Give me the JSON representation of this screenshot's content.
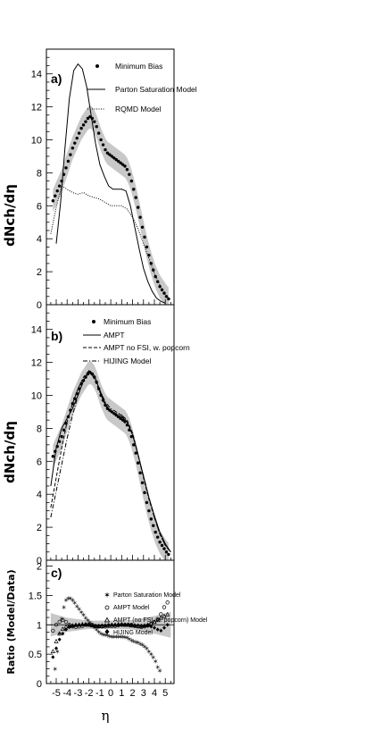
{
  "chart_data": [
    {
      "panel": "a)",
      "type": "line",
      "ylabel": "dNch/dη",
      "xlim": [
        -5.9,
        5.8
      ],
      "ylim": [
        0,
        15.5
      ],
      "yticks": [
        0,
        2,
        4,
        6,
        8,
        10,
        12,
        14
      ],
      "legend": [
        "Minimum Bias",
        "Parton Saturation Model",
        "RQMD Model"
      ],
      "data_band_halfwidth": 0.7,
      "series": [
        {
          "name": "Minimum Bias",
          "style": "points",
          "x": [
            -5.3,
            -5.1,
            -4.9,
            -4.7,
            -4.5,
            -4.3,
            -4.1,
            -3.9,
            -3.7,
            -3.5,
            -3.3,
            -3.1,
            -2.9,
            -2.7,
            -2.5,
            -2.3,
            -2.1,
            -1.9,
            -1.7,
            -1.5,
            -1.3,
            -1.1,
            -0.9,
            -0.7,
            -0.5,
            -0.3,
            -0.1,
            0.1,
            0.3,
            0.5,
            0.7,
            0.9,
            1.1,
            1.3,
            1.5,
            1.7,
            1.9,
            2.1,
            2.3,
            2.5,
            2.7,
            2.9,
            3.1,
            3.3,
            3.5,
            3.7,
            3.9,
            4.1,
            4.3,
            4.5,
            4.7,
            4.9,
            5.1,
            5.3
          ],
          "y": [
            6.3,
            6.6,
            6.9,
            7.2,
            7.5,
            7.9,
            8.3,
            8.7,
            9.1,
            9.5,
            9.8,
            10.1,
            10.4,
            10.7,
            10.9,
            11.1,
            11.3,
            11.4,
            11.3,
            11.1,
            10.8,
            10.4,
            10.0,
            9.7,
            9.4,
            9.2,
            9.1,
            9.0,
            8.9,
            8.8,
            8.7,
            8.6,
            8.5,
            8.4,
            8.2,
            7.9,
            7.5,
            7.0,
            6.5,
            5.9,
            5.3,
            4.7,
            4.1,
            3.5,
            3.0,
            2.5,
            2.1,
            1.7,
            1.4,
            1.1,
            0.9,
            0.7,
            0.5,
            0.35
          ]
        },
        {
          "name": "Parton Saturation Model",
          "style": "solid",
          "x": [
            -5.0,
            -4.6,
            -4.2,
            -3.8,
            -3.4,
            -3.0,
            -2.6,
            -2.2,
            -1.8,
            -1.4,
            -1.0,
            -0.6,
            -0.2,
            0.2,
            0.6,
            1.0,
            1.4,
            1.8,
            2.2,
            2.6,
            3.0,
            3.4,
            3.8,
            4.2,
            4.6,
            5.0
          ],
          "y": [
            3.7,
            6.2,
            9.5,
            12.5,
            14.2,
            14.6,
            14.3,
            13.2,
            11.5,
            9.8,
            8.5,
            7.8,
            7.2,
            7.0,
            7.0,
            7.0,
            6.9,
            6.0,
            4.7,
            3.4,
            2.2,
            1.4,
            0.8,
            0.4,
            0.2,
            0.1
          ]
        },
        {
          "name": "RQMD Model",
          "style": "dotted",
          "x": [
            -5.5,
            -5.0,
            -4.5,
            -4.0,
            -3.5,
            -3.0,
            -2.5,
            -2.0,
            -1.5,
            -1.0,
            -0.5,
            0.0,
            0.5,
            1.0,
            1.5,
            2.0,
            2.5,
            3.0,
            3.5,
            4.0,
            4.5,
            5.0,
            5.5
          ],
          "y": [
            4.3,
            5.9,
            7.2,
            7.0,
            6.8,
            6.7,
            6.8,
            6.6,
            6.5,
            6.4,
            6.2,
            6.0,
            6.0,
            6.0,
            5.8,
            5.3,
            4.6,
            3.7,
            2.8,
            1.9,
            1.2,
            0.6,
            0.3
          ]
        }
      ]
    },
    {
      "panel": "b)",
      "type": "line",
      "ylabel": "dNch/dη",
      "xlim": [
        -5.9,
        5.8
      ],
      "ylim": [
        0,
        15.5
      ],
      "yticks": [
        0,
        2,
        4,
        6,
        8,
        10,
        12,
        14
      ],
      "legend": [
        "Minimum Bias",
        "AMPT",
        "AMPT no FSI, w. popcorn",
        "HIJING Model"
      ],
      "data_band_halfwidth": 0.7,
      "series": [
        {
          "name": "Minimum Bias",
          "style": "points",
          "x": [
            -5.3,
            -5.1,
            -4.9,
            -4.7,
            -4.5,
            -4.3,
            -4.1,
            -3.9,
            -3.7,
            -3.5,
            -3.3,
            -3.1,
            -2.9,
            -2.7,
            -2.5,
            -2.3,
            -2.1,
            -1.9,
            -1.7,
            -1.5,
            -1.3,
            -1.1,
            -0.9,
            -0.7,
            -0.5,
            -0.3,
            -0.1,
            0.1,
            0.3,
            0.5,
            0.7,
            0.9,
            1.1,
            1.3,
            1.5,
            1.7,
            1.9,
            2.1,
            2.3,
            2.5,
            2.7,
            2.9,
            3.1,
            3.3,
            3.5,
            3.7,
            3.9,
            4.1,
            4.3,
            4.5,
            4.7,
            4.9,
            5.1,
            5.3
          ],
          "y": [
            6.3,
            6.6,
            6.9,
            7.2,
            7.5,
            7.9,
            8.3,
            8.7,
            9.1,
            9.5,
            9.8,
            10.1,
            10.4,
            10.7,
            10.9,
            11.1,
            11.3,
            11.4,
            11.3,
            11.1,
            10.8,
            10.4,
            10.0,
            9.7,
            9.4,
            9.2,
            9.1,
            9.0,
            8.9,
            8.8,
            8.7,
            8.6,
            8.5,
            8.4,
            8.2,
            7.9,
            7.5,
            7.0,
            6.5,
            5.9,
            5.3,
            4.7,
            4.1,
            3.5,
            3.0,
            2.5,
            2.1,
            1.7,
            1.4,
            1.1,
            0.9,
            0.7,
            0.5,
            0.35
          ]
        },
        {
          "name": "AMPT",
          "style": "solid",
          "x": [
            -5.5,
            -5.0,
            -4.5,
            -4.0,
            -3.5,
            -3.0,
            -2.5,
            -2.0,
            -1.5,
            -1.0,
            -0.5,
            0.0,
            0.5,
            1.0,
            1.5,
            2.0,
            2.5,
            3.0,
            3.5,
            4.0,
            4.5,
            5.0,
            5.5
          ],
          "y": [
            4.5,
            6.8,
            8.0,
            8.6,
            9.2,
            10.0,
            10.9,
            11.5,
            11.2,
            10.3,
            9.5,
            9.0,
            8.8,
            8.7,
            8.4,
            7.6,
            6.4,
            5.1,
            3.8,
            2.7,
            1.7,
            1.0,
            0.5
          ]
        },
        {
          "name": "AMPT no FSI, w. popcorn",
          "style": "dashed",
          "x": [
            -5.5,
            -5.0,
            -4.5,
            -4.0,
            -3.5,
            -3.0,
            -2.5,
            -2.0,
            -1.5,
            -1.0,
            -0.5,
            0.0,
            0.5,
            1.0,
            1.5,
            2.0,
            2.5,
            3.0,
            3.5,
            4.0,
            4.5,
            5.0,
            5.5
          ],
          "y": [
            3.2,
            5.0,
            6.8,
            8.4,
            9.5,
            10.4,
            11.1,
            11.5,
            11.0,
            10.2,
            9.4,
            9.0,
            8.9,
            8.8,
            8.5,
            7.7,
            6.4,
            5.0,
            3.7,
            2.6,
            1.6,
            0.9,
            0.5
          ]
        },
        {
          "name": "HIJING Model",
          "style": "dashdot",
          "x": [
            -5.5,
            -5.0,
            -4.5,
            -4.0,
            -3.5,
            -3.0,
            -2.5,
            -2.0,
            -1.5,
            -1.0,
            -0.5,
            0.0,
            0.5,
            1.0,
            1.5,
            2.0,
            2.5,
            3.0,
            3.5,
            4.0,
            4.5,
            5.0,
            5.5
          ],
          "y": [
            2.6,
            4.2,
            5.8,
            7.4,
            8.8,
            10.0,
            10.9,
            11.4,
            11.1,
            10.3,
            9.6,
            9.2,
            9.0,
            8.8,
            8.4,
            7.6,
            6.4,
            5.1,
            3.8,
            2.6,
            1.6,
            0.9,
            0.5
          ]
        }
      ]
    },
    {
      "panel": "c)",
      "type": "scatter",
      "ylabel": "Ratio (Model/Data)",
      "xlabel": "η",
      "xlim": [
        -5.9,
        5.8
      ],
      "ylim": [
        0,
        2.1
      ],
      "yticks": [
        0,
        0.5,
        1,
        1.5,
        2
      ],
      "ytick_labels": [
        "0",
        "0.5",
        "1",
        "1.5",
        "2"
      ],
      "xticks": [
        -5,
        -4,
        -3,
        -2,
        -1,
        0,
        1,
        2,
        3,
        4,
        5
      ],
      "legend": [
        "Parton Saturation Model",
        "AMPT Model",
        "AMPT (no FSI, w. popcorn) Model",
        "HIJING Model"
      ],
      "systematic_band": {
        "x": [
          -5.5,
          -4,
          -2,
          0,
          2,
          4,
          5.5
        ],
        "lower": [
          0.8,
          0.88,
          0.93,
          0.93,
          0.92,
          0.85,
          0.78
        ],
        "upper": [
          1.2,
          1.12,
          1.07,
          1.07,
          1.08,
          1.15,
          1.22
        ]
      },
      "series": [
        {
          "name": "Parton Saturation Model",
          "marker": "star",
          "x": [
            -5.1,
            -4.9,
            -4.7,
            -4.5,
            -4.3,
            -4.1,
            -3.9,
            -3.7,
            -3.5,
            -3.3,
            -3.1,
            -2.9,
            -2.7,
            -2.5,
            -2.3,
            -2.1,
            -1.9,
            -1.7,
            -1.5,
            -1.3,
            -1.1,
            -0.9,
            -0.7,
            -0.5,
            -0.3,
            -0.1,
            0.1,
            0.3,
            0.5,
            0.7,
            0.9,
            1.1,
            1.3,
            1.5,
            1.7,
            1.9,
            2.1,
            2.3,
            2.5,
            2.7,
            2.9,
            3.1,
            3.3,
            3.5,
            3.7,
            3.9,
            4.1,
            4.3,
            4.5
          ],
          "y": [
            0.25,
            0.55,
            0.85,
            1.1,
            1.3,
            1.42,
            1.45,
            1.45,
            1.42,
            1.38,
            1.32,
            1.27,
            1.22,
            1.17,
            1.12,
            1.08,
            1.04,
            1.0,
            0.96,
            0.92,
            0.88,
            0.85,
            0.84,
            0.83,
            0.82,
            0.81,
            0.8,
            0.8,
            0.8,
            0.8,
            0.8,
            0.8,
            0.79,
            0.78,
            0.76,
            0.74,
            0.72,
            0.71,
            0.7,
            0.68,
            0.66,
            0.63,
            0.6,
            0.55,
            0.5,
            0.45,
            0.38,
            0.28,
            0.22
          ]
        },
        {
          "name": "AMPT Model",
          "marker": "circle",
          "x": [
            -5.3,
            -5.0,
            -4.7,
            -4.4,
            -4.1,
            -3.8,
            -3.5,
            -3.2,
            -2.9,
            -2.6,
            -2.3,
            -2.0,
            -1.7,
            -1.4,
            -1.1,
            -0.8,
            -0.5,
            -0.2,
            0.1,
            0.4,
            0.7,
            1.0,
            1.3,
            1.6,
            1.9,
            2.2,
            2.5,
            2.8,
            3.1,
            3.4,
            3.7,
            4.0,
            4.3,
            4.6,
            4.9,
            5.2
          ],
          "y": [
            0.9,
            1.0,
            1.05,
            1.08,
            1.05,
            1.0,
            0.97,
            0.96,
            0.97,
            0.98,
            1.0,
            1.01,
            1.0,
            0.98,
            0.97,
            0.97,
            0.97,
            0.98,
            0.98,
            0.98,
            0.99,
            1.0,
            1.0,
            1.0,
            1.0,
            0.98,
            0.97,
            0.96,
            0.97,
            0.99,
            1.02,
            1.05,
            1.1,
            1.18,
            1.3,
            1.38
          ]
        },
        {
          "name": "AMPT (no FSI, w. popcorn) Model",
          "marker": "triangle",
          "x": [
            -5.3,
            -5.0,
            -4.7,
            -4.4,
            -4.1,
            -3.8,
            -3.5,
            -3.2,
            -2.9,
            -2.6,
            -2.3,
            -2.0,
            -1.7,
            -1.4,
            -1.1,
            -0.8,
            -0.5,
            -0.2,
            0.1,
            0.4,
            0.7,
            1.0,
            1.3,
            1.6,
            1.9,
            2.2,
            2.5,
            2.8,
            3.1,
            3.4,
            3.7,
            4.0,
            4.3,
            4.6,
            4.9,
            5.2
          ],
          "y": [
            0.55,
            0.72,
            0.85,
            0.93,
            0.97,
            0.98,
            0.99,
            1.0,
            1.0,
            1.01,
            1.01,
            1.0,
            0.99,
            0.98,
            0.98,
            0.98,
            0.99,
            0.99,
            1.0,
            1.0,
            1.01,
            1.01,
            1.0,
            1.0,
            0.99,
            0.99,
            0.98,
            0.98,
            0.99,
            1.0,
            1.02,
            1.05,
            1.08,
            1.12,
            1.15,
            1.18
          ]
        },
        {
          "name": "HIJING Model",
          "marker": "diamond",
          "x": [
            -5.3,
            -5.0,
            -4.7,
            -4.4,
            -4.1,
            -3.8,
            -3.5,
            -3.2,
            -2.9,
            -2.6,
            -2.3,
            -2.0,
            -1.7,
            -1.4,
            -1.1,
            -0.8,
            -0.5,
            -0.2,
            0.1,
            0.4,
            0.7,
            1.0,
            1.3,
            1.6,
            1.9,
            2.2,
            2.5,
            2.8,
            3.1,
            3.4,
            3.7,
            4.0,
            4.3,
            4.6,
            4.9,
            5.2
          ],
          "y": [
            0.45,
            0.6,
            0.75,
            0.85,
            0.92,
            0.96,
            0.98,
            0.99,
            1.0,
            1.0,
            1.0,
            1.0,
            0.99,
            0.98,
            0.98,
            0.99,
            0.99,
            1.0,
            1.0,
            1.0,
            1.0,
            1.0,
            1.0,
            1.0,
            1.0,
            0.99,
            0.99,
            0.98,
            0.98,
            0.98,
            0.97,
            0.95,
            0.92,
            0.9,
            0.95,
            1.0
          ]
        }
      ]
    }
  ]
}
